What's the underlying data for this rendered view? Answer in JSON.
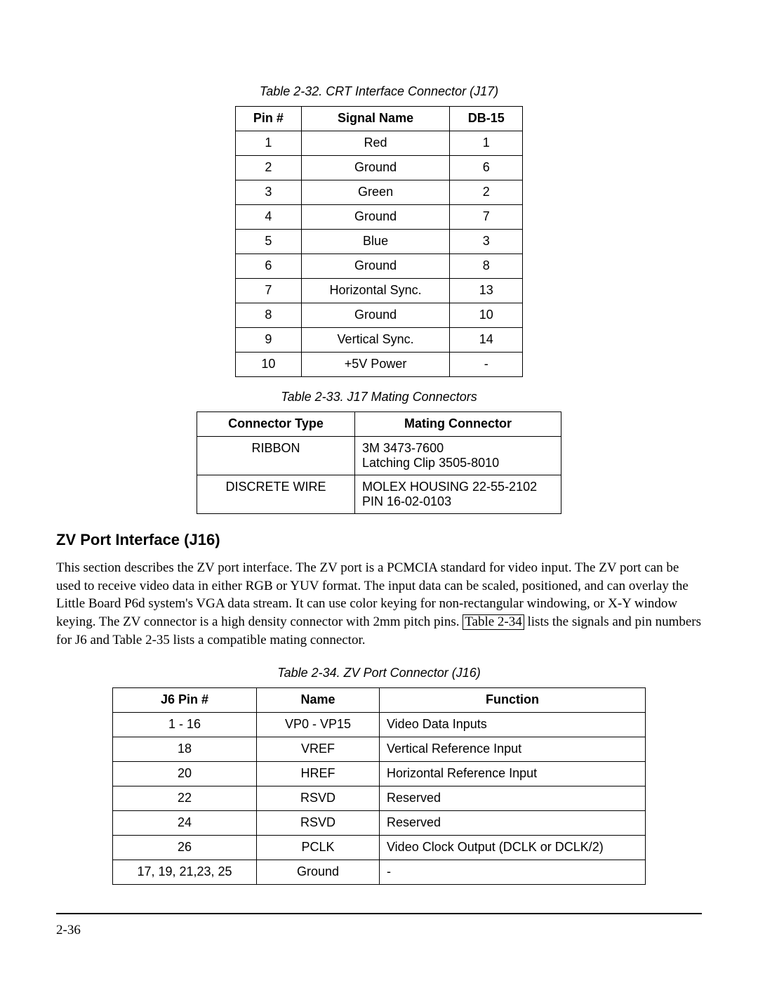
{
  "table1": {
    "caption": "Table 2-32.  CRT Interface Connector (J17)",
    "headers": [
      "Pin #",
      "Signal Name",
      "DB-15"
    ],
    "rows": [
      [
        "1",
        "Red",
        "1"
      ],
      [
        "2",
        "Ground",
        "6"
      ],
      [
        "3",
        "Green",
        "2"
      ],
      [
        "4",
        "Ground",
        "7"
      ],
      [
        "5",
        "Blue",
        "3"
      ],
      [
        "6",
        "Ground",
        "8"
      ],
      [
        "7",
        "Horizontal Sync.",
        "13"
      ],
      [
        "8",
        "Ground",
        "10"
      ],
      [
        "9",
        "Vertical Sync.",
        "14"
      ],
      [
        "10",
        "+5V Power",
        "-"
      ]
    ]
  },
  "table2": {
    "caption": "Table 2-33.  J17 Mating Connectors",
    "headers": [
      "Connector Type",
      "Mating Connector"
    ],
    "rows": [
      [
        "RIBBON",
        "3M 3473-7600\nLatching Clip 3505-8010"
      ],
      [
        "DISCRETE WIRE",
        "MOLEX HOUSING 22-55-2102\nPIN 16-02-0103"
      ]
    ]
  },
  "section": {
    "heading": "ZV Port Interface (J16)",
    "para_pre": "This section describes the ZV port interface.  The ZV port is a PCMCIA standard for video input.  The ZV port can be used to receive video data in either RGB or YUV format.  The input data can be scaled, positioned, and can overlay the Little Board P6d system's VGA data stream.  It can use color keying for non-rectangular windowing, or X-Y window keying.  The ZV connector is a high density connector with 2mm pitch pins.  ",
    "ref_text": "Table 2-34",
    "para_post": " lists the signals and pin numbers for J6 and Table 2-35 lists a compatible mating connector."
  },
  "table3": {
    "caption": "Table 2-34.  ZV Port Connector (J16)",
    "headers": [
      "J6 Pin #",
      "Name",
      "Function"
    ],
    "rows": [
      [
        "1 - 16",
        "VP0 - VP15",
        "Video Data Inputs"
      ],
      [
        "18",
        "VREF",
        "Vertical Reference Input"
      ],
      [
        "20",
        "HREF",
        "Horizontal Reference Input"
      ],
      [
        "22",
        "RSVD",
        "Reserved"
      ],
      [
        "24",
        "RSVD",
        "Reserved"
      ],
      [
        "26",
        "PCLK",
        "Video Clock Output (DCLK or DCLK/2)"
      ],
      [
        "17, 19, 21,23, 25",
        "Ground",
        "-"
      ]
    ]
  },
  "footer": {
    "page_num": "2-36"
  }
}
